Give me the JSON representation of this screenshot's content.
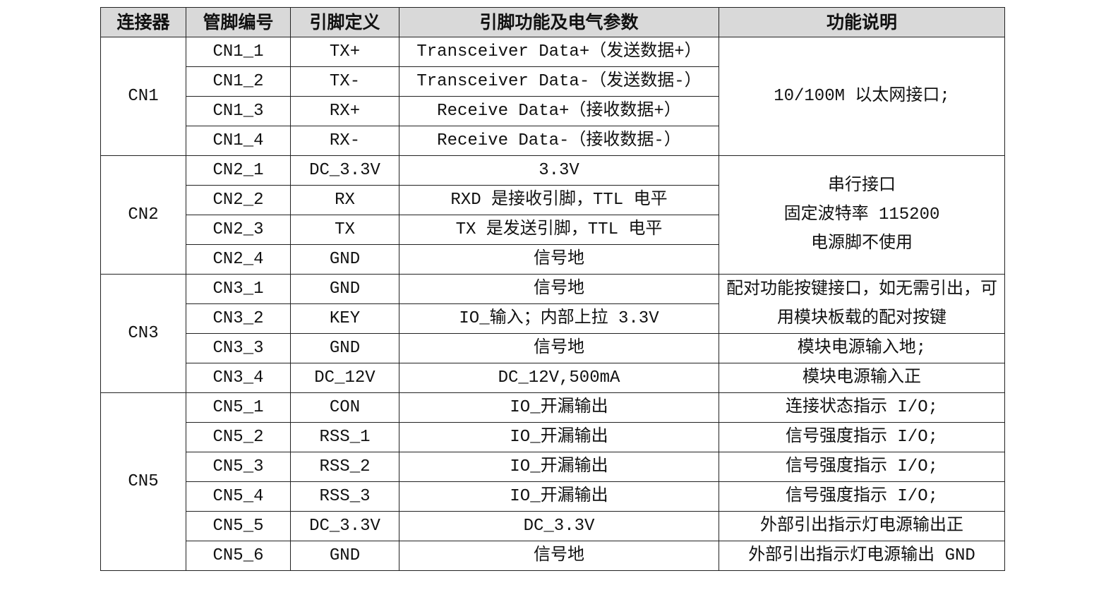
{
  "headers": [
    "连接器",
    "管脚编号",
    "引脚定义",
    "引脚功能及电气参数",
    "功能说明"
  ],
  "rows": [
    {
      "connector": "CN1",
      "pin": "CN1_1",
      "def": "TX+",
      "func": "Transceiver Data+（发送数据+）",
      "desc": "10/100M 以太网接口;"
    },
    {
      "pin": "CN1_2",
      "def": "TX-",
      "func": "Transceiver Data-（发送数据-）"
    },
    {
      "pin": "CN1_3",
      "def": "RX+",
      "func": "Receive Data+（接收数据+）"
    },
    {
      "pin": "CN1_4",
      "def": "RX-",
      "func": "Receive Data-（接收数据-）"
    },
    {
      "connector": "CN2",
      "pin": "CN2_1",
      "def": "DC_3.3V",
      "func": "3.3V",
      "desc": "串行接口\n固定波特率 115200\n电源脚不使用"
    },
    {
      "pin": "CN2_2",
      "def": "RX",
      "func": "RXD 是接收引脚，TTL 电平"
    },
    {
      "pin": "CN2_3",
      "def": "TX",
      "func": "TX 是发送引脚，TTL 电平"
    },
    {
      "pin": "CN2_4",
      "def": "GND",
      "func": "信号地"
    },
    {
      "connector": "CN3",
      "pin": "CN3_1",
      "def": "GND",
      "func": "信号地",
      "desc": "配对功能按键接口，如无需引出，可用模块板载的配对按键"
    },
    {
      "pin": "CN3_2",
      "def": "KEY",
      "func": "IO_输入；内部上拉 3.3V"
    },
    {
      "pin": "CN3_3",
      "def": "GND",
      "func": "信号地",
      "desc": "模块电源输入地;"
    },
    {
      "pin": "CN3_4",
      "def": "DC_12V",
      "func": "DC_12V,500mA",
      "desc": "模块电源输入正"
    },
    {
      "connector": "CN5",
      "pin": "CN5_1",
      "def": "CON",
      "func": "IO_开漏输出",
      "desc": "连接状态指示 I/O;"
    },
    {
      "pin": "CN5_2",
      "def": "RSS_1",
      "func": "IO_开漏输出",
      "desc": "信号强度指示 I/O;"
    },
    {
      "pin": "CN5_3",
      "def": "RSS_2",
      "func": "IO_开漏输出",
      "desc": "信号强度指示 I/O;"
    },
    {
      "pin": "CN5_4",
      "def": "RSS_3",
      "func": "IO_开漏输出",
      "desc": "信号强度指示 I/O;"
    },
    {
      "pin": "CN5_5",
      "def": "DC_3.3V",
      "func": "DC_3.3V",
      "desc": "外部引出指示灯电源输出正"
    },
    {
      "pin": "CN5_6",
      "def": "GND",
      "func": "信号地",
      "desc": "外部引出指示灯电源输出 GND"
    }
  ]
}
